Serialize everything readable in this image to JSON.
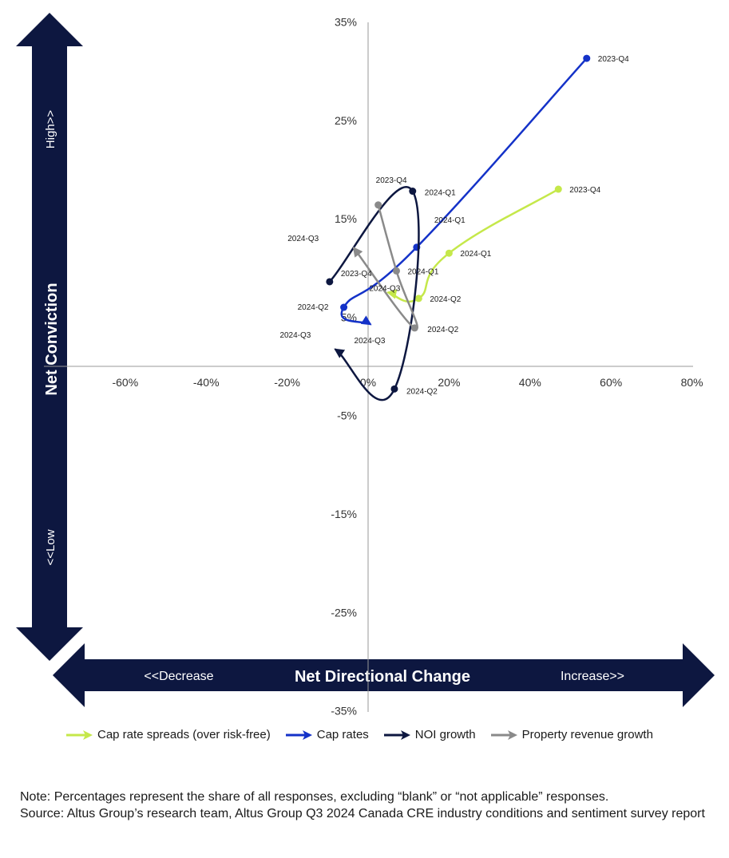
{
  "chart_data": {
    "type": "scatter",
    "connected_lines": true,
    "x_axis": {
      "title": "Net Directional Change",
      "left_label": "<<Decrease",
      "right_label": "Increase>>",
      "range": [
        -80,
        80
      ],
      "tick_values": [
        -60,
        -40,
        -20,
        0,
        20,
        40,
        60,
        80
      ],
      "tick_labels": [
        "-60%",
        "-40%",
        "-20%",
        "0%",
        "20%",
        "40%",
        "60%",
        "80%"
      ]
    },
    "y_axis": {
      "title": "Net Conviction",
      "top_label": "High>>",
      "bottom_label": "<<Low",
      "range": [
        -35,
        35
      ],
      "tick_values": [
        35,
        25,
        15,
        5,
        -5,
        -15,
        -25,
        -35
      ],
      "tick_labels": [
        "35%",
        "25%",
        "15%",
        "5%",
        "-5%",
        "-15%",
        "-25%",
        "-35%"
      ]
    },
    "series": [
      {
        "name": "Cap rate spreads (over risk-free)",
        "color": "#c5e84a",
        "points": [
          {
            "label": "2023-Q4",
            "x": 47,
            "y": 18
          },
          {
            "label": "2024-Q1",
            "x": 20,
            "y": 11.5
          },
          {
            "label": "2024-Q2",
            "x": 12.5,
            "y": 6.9
          },
          {
            "label": "2024-Q3",
            "x": 5,
            "y": 7.5
          }
        ]
      },
      {
        "name": "Cap rates",
        "color": "#1432c8",
        "points": [
          {
            "label": "2023-Q4",
            "x": 54,
            "y": 31.3
          },
          {
            "label": "2024-Q1",
            "x": 12,
            "y": 12.1
          },
          {
            "label": "2024-Q2",
            "x": -6,
            "y": 6
          },
          {
            "label": "2024-Q3",
            "x": 0.5,
            "y": 4.3
          }
        ]
      },
      {
        "name": "NOI growth",
        "color": "#0d1740",
        "points": [
          {
            "label": "2023-Q4",
            "x": -9.5,
            "y": 8.6
          },
          {
            "label": "2024-Q1",
            "x": 11,
            "y": 17.8
          },
          {
            "label": "2024-Q2",
            "x": 6.5,
            "y": -2.3
          },
          {
            "label": "2024-Q3",
            "x": -8,
            "y": 1.7
          }
        ]
      },
      {
        "name": "Property revenue growth",
        "color": "#8a8a8a",
        "points": [
          {
            "label": "2023-Q4",
            "x": 2.5,
            "y": 16.4
          },
          {
            "label": "2024-Q1",
            "x": 7,
            "y": 9.7
          },
          {
            "label": "2024-Q2",
            "x": 11.5,
            "y": 3.9
          },
          {
            "label": "2024-Q3",
            "x": -3.5,
            "y": 12
          }
        ]
      }
    ]
  },
  "notes": {
    "line1": "Note: Percentages represent the share of all responses, excluding “blank” or “not applicable” responses.",
    "line2": "Source: Altus Group’s research team, Altus Group Q3 2024 Canada CRE industry conditions and sentiment survey report"
  }
}
